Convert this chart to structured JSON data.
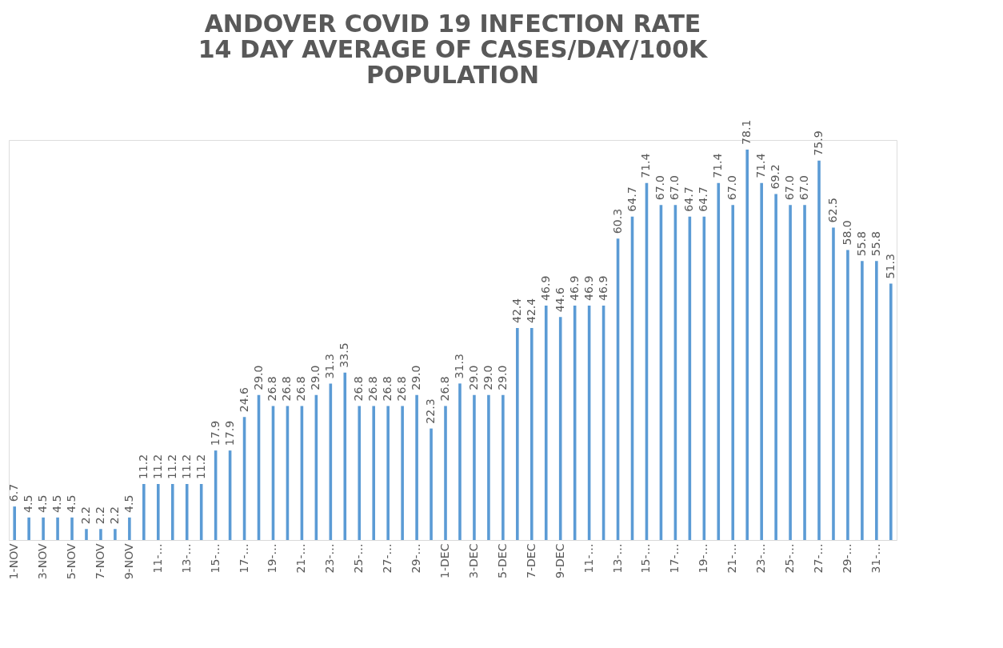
{
  "chart_data": {
    "type": "bar",
    "title": "ANDOVER COVID 19 INFECTION RATE 14 DAY AVERAGE OF CASES/DAY/100K POPULATION",
    "categories": [
      "1-NOV",
      null,
      "3-NOV",
      null,
      "5-NOV",
      null,
      "7-NOV",
      null,
      "9-NOV",
      null,
      "11-…",
      null,
      "13-…",
      null,
      "15-…",
      null,
      "17-…",
      null,
      "19-…",
      null,
      "21-…",
      null,
      "23-…",
      null,
      "25-…",
      null,
      "27-…",
      null,
      "29-…",
      null,
      "1-DEC",
      null,
      "3-DEC",
      null,
      "5-DEC",
      null,
      "7-DEC",
      null,
      "9-DEC",
      null,
      "11-…",
      null,
      "13-…",
      null,
      "15-…",
      null,
      "17-…",
      null,
      "19-…",
      null,
      "21-…",
      null,
      "23-…",
      null,
      "25-…",
      null,
      "27-…",
      null,
      "29-…",
      null,
      "31-…",
      null
    ],
    "values": [
      6.7,
      4.5,
      4.5,
      4.5,
      4.5,
      2.2,
      2.2,
      2.2,
      4.5,
      11.2,
      11.2,
      11.2,
      11.2,
      11.2,
      17.9,
      17.9,
      24.6,
      29.0,
      26.8,
      26.8,
      26.8,
      29.0,
      31.3,
      33.5,
      26.8,
      26.8,
      26.8,
      26.8,
      29.0,
      22.3,
      26.8,
      31.3,
      29.0,
      29.0,
      29.0,
      42.4,
      42.4,
      46.9,
      44.6,
      46.9,
      46.9,
      46.9,
      60.3,
      64.7,
      71.4,
      67.0,
      67.0,
      64.7,
      64.7,
      71.4,
      67.0,
      78.1,
      71.4,
      69.2,
      67.0,
      67.0,
      75.9,
      62.5,
      58.0,
      55.8,
      55.8,
      51.3
    ],
    "value_labels": [
      "6.7",
      "4.5",
      "4.5",
      "4.5",
      "4.5",
      "2.2",
      "2.2",
      "2.2",
      "4.5",
      "11.2",
      "11.2",
      "11.2",
      "11.2",
      "11.2",
      "17.9",
      "17.9",
      "24.6",
      "29.0",
      "26.8",
      "26.8",
      "26.8",
      "29.0",
      "31.3",
      "33.5",
      "26.8",
      "26.8",
      "26.8",
      "26.8",
      "29.0",
      "22.3",
      "26.8",
      "31.3",
      "29.0",
      "29.0",
      "29.0",
      "42.4",
      "42.4",
      "46.9",
      "44.6",
      "46.9",
      "46.9",
      "46.9",
      "60.3",
      "64.7",
      "71.4",
      "67.0",
      "67.0",
      "64.7",
      "64.7",
      "71.4",
      "67.0",
      "78.1",
      "71.4",
      "69.2",
      "67.0",
      "67.0",
      "75.9",
      "62.5",
      "58.0",
      "55.8",
      "55.8",
      "51.3"
    ],
    "color": "#5b9bd5"
  }
}
